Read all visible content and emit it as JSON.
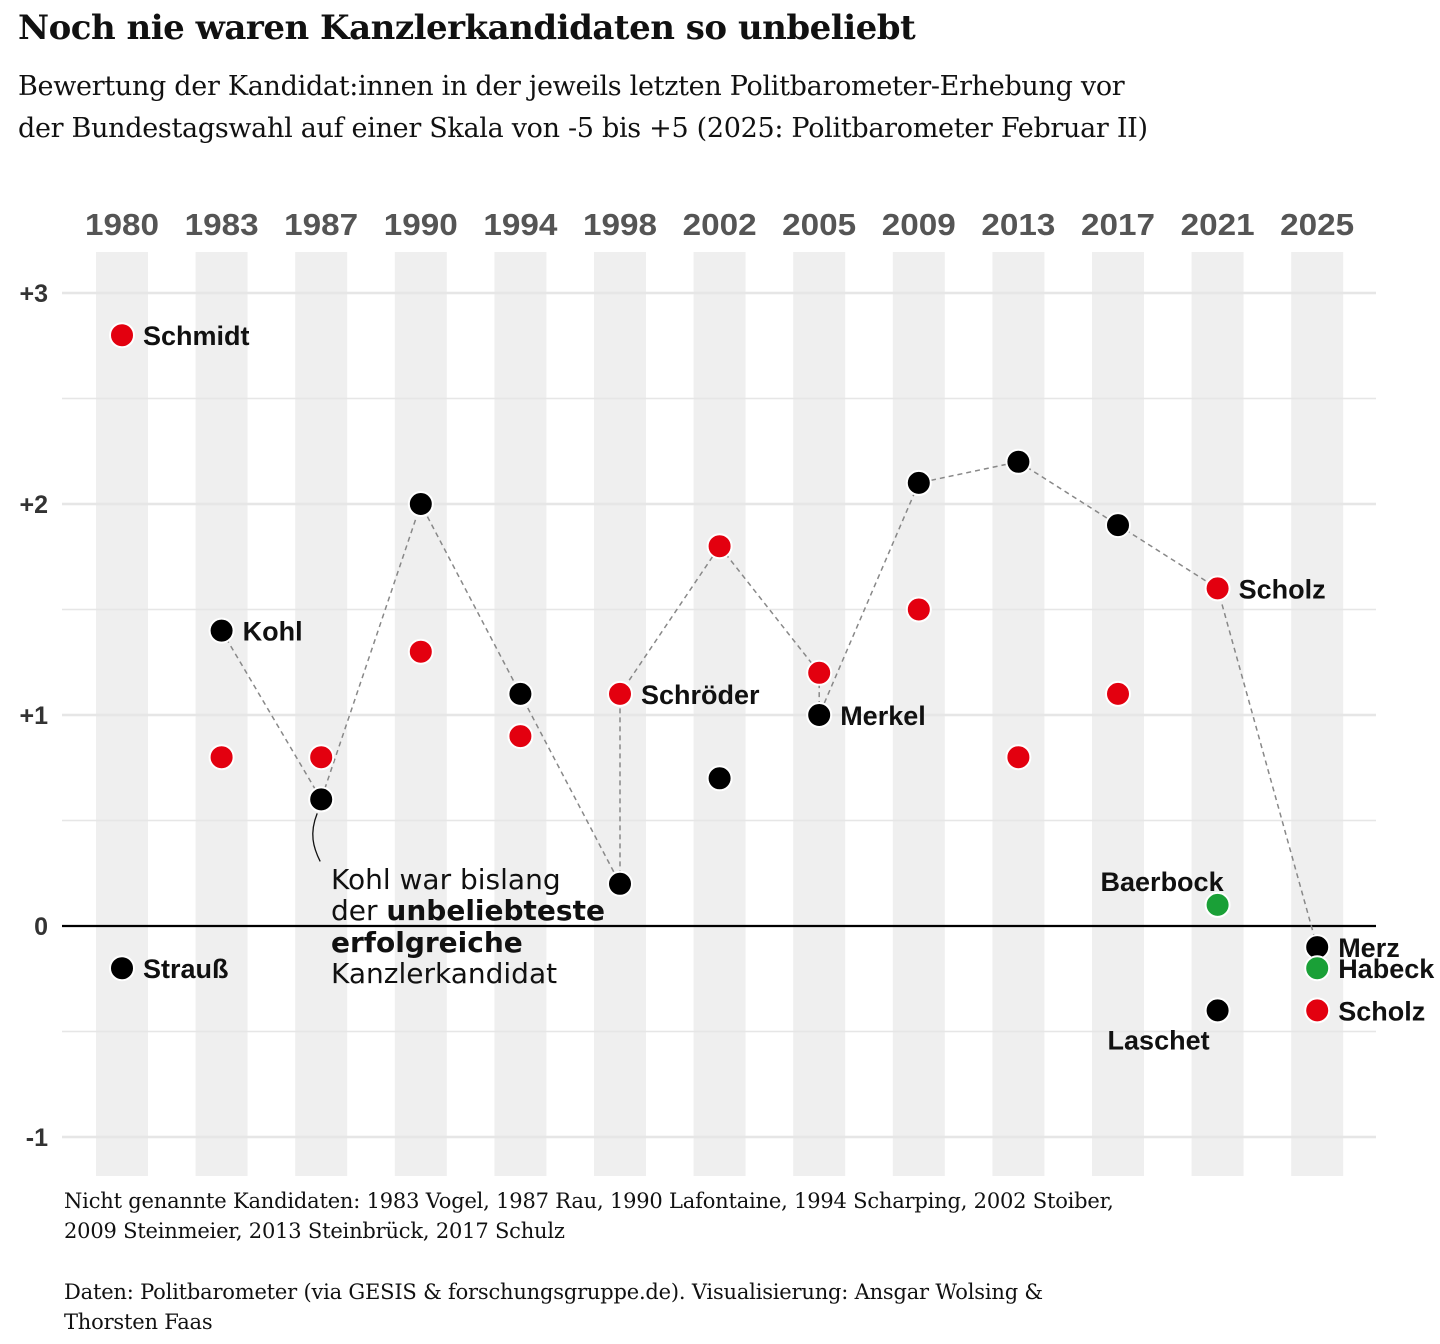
{
  "title": "Noch nie waren Kanzlerkandidaten so unbeliebt",
  "subtitle": {
    "line1": "Bewertung der Kandidat:innen in der jeweils letzten Politbarometer-Erhebung vor",
    "line2": "der Bundestagswahl auf einer Skala von -5 bis +5 (2025: Politbarometer Februar II)"
  },
  "footnotes": {
    "others_line1": "Nicht genannte Kandidaten: 1983 Vogel, 1987 Rau, 1990 Lafontaine, 1994 Scharping, 2002 Stoiber,",
    "others_line2": "2009 Steinmeier, 2013 Steinbrück, 2017 Schulz",
    "source_line1": "Daten: Politbarometer (via GESIS & forschungsgruppe.de). Visualisierung: Ansgar Wolsing &",
    "source_line2": "Thorsten Faas"
  },
  "colors": {
    "union": "#000000",
    "spd": "#e3000f",
    "gruene": "#1aa037",
    "band": "#efefef",
    "grid": "#e6e6e6",
    "connector": "#888888",
    "year_label": "#555555"
  },
  "chart_data": {
    "type": "scatter",
    "categories": [
      "1980",
      "1983",
      "1987",
      "1990",
      "1994",
      "1998",
      "2002",
      "2005",
      "2009",
      "2013",
      "2017",
      "2021",
      "2025"
    ],
    "ylim": [
      -1.1,
      3.2
    ],
    "y_ticks": [
      {
        "value": 3,
        "label": "+3"
      },
      {
        "value": 2,
        "label": "+2"
      },
      {
        "value": 1,
        "label": "+1"
      },
      {
        "value": 0,
        "label": "0"
      },
      {
        "value": -1,
        "label": "-1"
      }
    ],
    "minor_gridlines": [
      2.5,
      1.5,
      0.5,
      -0.5
    ],
    "grid": true,
    "points": [
      {
        "year": "1980",
        "value": 2.8,
        "party": "spd",
        "label": "Schmidt",
        "label_side": "right"
      },
      {
        "year": "1980",
        "value": -0.2,
        "party": "union",
        "label": "Strauß",
        "label_side": "right"
      },
      {
        "year": "1983",
        "value": 1.4,
        "party": "union",
        "label": "Kohl",
        "label_side": "right"
      },
      {
        "year": "1983",
        "value": 0.8,
        "party": "spd",
        "label": "",
        "label_side": ""
      },
      {
        "year": "1987",
        "value": 0.8,
        "party": "spd",
        "label": "",
        "label_side": ""
      },
      {
        "year": "1987",
        "value": 0.6,
        "party": "union",
        "label": "",
        "label_side": ""
      },
      {
        "year": "1990",
        "value": 2.0,
        "party": "union",
        "label": "",
        "label_side": ""
      },
      {
        "year": "1990",
        "value": 1.3,
        "party": "spd",
        "label": "",
        "label_side": ""
      },
      {
        "year": "1994",
        "value": 1.1,
        "party": "union",
        "label": "",
        "label_side": ""
      },
      {
        "year": "1994",
        "value": 0.9,
        "party": "spd",
        "label": "",
        "label_side": ""
      },
      {
        "year": "1998",
        "value": 1.1,
        "party": "spd",
        "label": "Schröder",
        "label_side": "right"
      },
      {
        "year": "1998",
        "value": 0.2,
        "party": "union",
        "label": "",
        "label_side": ""
      },
      {
        "year": "2002",
        "value": 1.8,
        "party": "spd",
        "label": "",
        "label_side": ""
      },
      {
        "year": "2002",
        "value": 0.7,
        "party": "union",
        "label": "",
        "label_side": ""
      },
      {
        "year": "2005",
        "value": 1.2,
        "party": "spd",
        "label": "",
        "label_side": ""
      },
      {
        "year": "2005",
        "value": 1.0,
        "party": "union",
        "label": "Merkel",
        "label_side": "right"
      },
      {
        "year": "2009",
        "value": 2.1,
        "party": "union",
        "label": "",
        "label_side": ""
      },
      {
        "year": "2009",
        "value": 1.5,
        "party": "spd",
        "label": "",
        "label_side": ""
      },
      {
        "year": "2013",
        "value": 2.2,
        "party": "union",
        "label": "",
        "label_side": ""
      },
      {
        "year": "2013",
        "value": 0.8,
        "party": "spd",
        "label": "",
        "label_side": ""
      },
      {
        "year": "2017",
        "value": 1.9,
        "party": "union",
        "label": "",
        "label_side": ""
      },
      {
        "year": "2017",
        "value": 1.1,
        "party": "spd",
        "label": "",
        "label_side": ""
      },
      {
        "year": "2021",
        "value": 1.6,
        "party": "spd",
        "label": "Scholz",
        "label_side": "right"
      },
      {
        "year": "2021",
        "value": 0.1,
        "party": "gruene",
        "label": "Baerbock",
        "label_side": "above-left"
      },
      {
        "year": "2021",
        "value": -0.4,
        "party": "union",
        "label": "Laschet",
        "label_side": "below-left"
      },
      {
        "year": "2025",
        "value": -0.1,
        "party": "union",
        "label": "Merz",
        "label_side": "right"
      },
      {
        "year": "2025",
        "value": -0.2,
        "party": "gruene",
        "label": "Habeck",
        "label_side": "right"
      },
      {
        "year": "2025",
        "value": -0.4,
        "party": "spd",
        "label": "Scholz",
        "label_side": "right"
      }
    ],
    "winners_line": [
      {
        "year": "1983",
        "value": 1.4
      },
      {
        "year": "1987",
        "value": 0.6
      },
      {
        "year": "1990",
        "value": 2.0
      },
      {
        "year": "1994",
        "value": 1.1
      },
      {
        "year": "1998",
        "value": 0.2
      },
      {
        "year": "1998",
        "value": 1.1
      },
      {
        "year": "2002",
        "value": 1.8
      },
      {
        "year": "2005",
        "value": 1.2
      },
      {
        "year": "2005",
        "value": 1.0
      },
      {
        "year": "2009",
        "value": 2.1
      },
      {
        "year": "2013",
        "value": 2.2
      },
      {
        "year": "2017",
        "value": 1.9
      },
      {
        "year": "2021",
        "value": 1.6
      },
      {
        "year": "2025",
        "value": -0.1
      }
    ],
    "annotation": {
      "year": "1987",
      "value": 0.6,
      "line1": "Kohl war bislang",
      "line2_normal": "der ",
      "line2_bold": "unbeliebteste",
      "line3_bold": "erfolgreiche",
      "line4": "Kanzlerkandidat"
    }
  }
}
